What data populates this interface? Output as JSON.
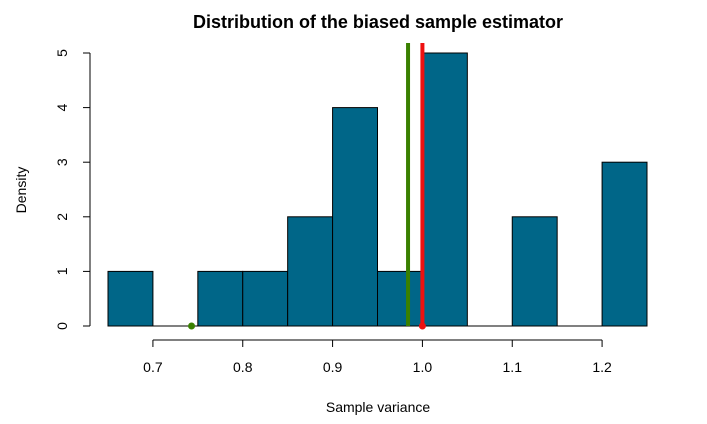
{
  "chart_data": {
    "type": "bar",
    "title": "Distribution of the biased sample estimator",
    "xlabel": "Sample variance",
    "ylabel": "Density",
    "bins": [
      {
        "from": 0.65,
        "to": 0.7,
        "density": 1
      },
      {
        "from": 0.7,
        "to": 0.75,
        "density": 0
      },
      {
        "from": 0.75,
        "to": 0.8,
        "density": 1
      },
      {
        "from": 0.8,
        "to": 0.85,
        "density": 1
      },
      {
        "from": 0.85,
        "to": 0.9,
        "density": 2
      },
      {
        "from": 0.9,
        "to": 0.95,
        "density": 4
      },
      {
        "from": 0.95,
        "to": 1.0,
        "density": 1
      },
      {
        "from": 1.0,
        "to": 1.05,
        "density": 5
      },
      {
        "from": 1.05,
        "to": 1.1,
        "density": 0
      },
      {
        "from": 1.1,
        "to": 1.15,
        "density": 2
      },
      {
        "from": 1.15,
        "to": 1.2,
        "density": 0
      },
      {
        "from": 1.2,
        "to": 1.25,
        "density": 3
      }
    ],
    "xlim": [
      0.65,
      1.25
    ],
    "ylim": [
      0,
      5
    ],
    "x_ticks": [
      0.7,
      0.8,
      0.9,
      1.0,
      1.1,
      1.2
    ],
    "x_tick_labels": [
      "0.7",
      "0.8",
      "0.9",
      "1.0",
      "1.1",
      "1.2"
    ],
    "y_ticks": [
      0,
      1,
      2,
      3,
      4,
      5
    ],
    "y_tick_labels": [
      "0",
      "1",
      "2",
      "3",
      "4",
      "5"
    ],
    "bar_color": "#006688",
    "vlines": [
      {
        "x": 0.984,
        "color": "#3a8000"
      },
      {
        "x": 1.0,
        "color": "#ee1111"
      }
    ],
    "points": [
      {
        "x": 0.743,
        "y": 0,
        "color": "#3a8000"
      },
      {
        "x": 1.0,
        "y": 0,
        "color": "#ee1111"
      }
    ],
    "grid": false
  }
}
